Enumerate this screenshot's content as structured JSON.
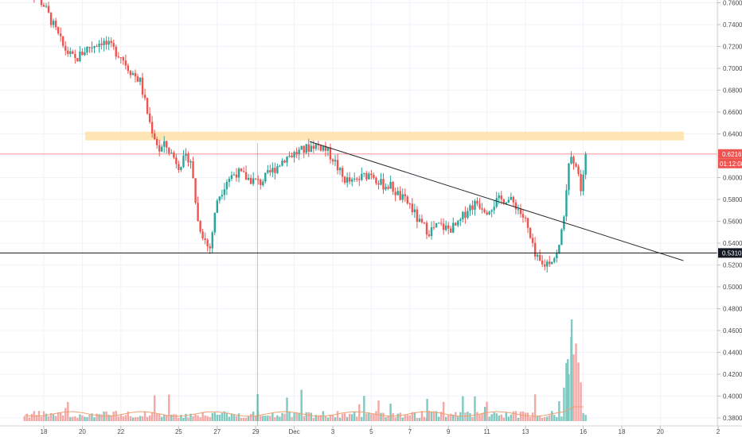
{
  "chart_data": {
    "type": "candlestick",
    "price_axis": {
      "ticks": [
        "0.7600",
        "0.7400",
        "0.7200",
        "0.7000",
        "0.6800",
        "0.6600",
        "0.6400",
        "0.6200",
        "0.6000",
        "0.5800",
        "0.5600",
        "0.5400",
        "0.5200",
        "0.5000",
        "0.4800",
        "0.4600",
        "0.4400",
        "0.4200",
        "0.4000",
        "0.3800"
      ]
    },
    "date_axis": {
      "ticks": [
        {
          "label": "18",
          "day": 18
        },
        {
          "label": "20",
          "day": 20
        },
        {
          "label": "22",
          "day": 22
        },
        {
          "label": "25",
          "day": 25
        },
        {
          "label": "27",
          "day": 27
        },
        {
          "label": "29",
          "day": 29
        },
        {
          "label": "Dec",
          "day": 31
        },
        {
          "label": "3",
          "day": 33
        },
        {
          "label": "5",
          "day": 35
        },
        {
          "label": "7",
          "day": 37
        },
        {
          "label": "9",
          "day": 39
        },
        {
          "label": "11",
          "day": 41
        },
        {
          "label": "13",
          "day": 43
        },
        {
          "label": "16",
          "day": 46
        },
        {
          "label": "18",
          "day": 48
        },
        {
          "label": "20",
          "day": 50
        },
        {
          "label": "2",
          "day": 53
        }
      ]
    },
    "price_path": [
      [
        17.0,
        0.78
      ],
      [
        18.0,
        0.758
      ],
      [
        19.0,
        0.72
      ],
      [
        19.6,
        0.707
      ],
      [
        20.2,
        0.718
      ],
      [
        21.0,
        0.725
      ],
      [
        22.0,
        0.712
      ],
      [
        22.4,
        0.7
      ],
      [
        23.0,
        0.688
      ],
      [
        23.5,
        0.65
      ],
      [
        24.0,
        0.625
      ],
      [
        24.3,
        0.63
      ],
      [
        25.0,
        0.612
      ],
      [
        25.6,
        0.62
      ],
      [
        26.0,
        0.56
      ],
      [
        26.3,
        0.546
      ],
      [
        26.6,
        0.533
      ],
      [
        27.0,
        0.58
      ],
      [
        27.5,
        0.598
      ],
      [
        28.0,
        0.605
      ],
      [
        28.5,
        0.6
      ],
      [
        29.2,
        0.595
      ],
      [
        29.8,
        0.605
      ],
      [
        30.5,
        0.618
      ],
      [
        31.0,
        0.622
      ],
      [
        31.5,
        0.625
      ],
      [
        32.0,
        0.63
      ],
      [
        32.5,
        0.628
      ],
      [
        33.0,
        0.618
      ],
      [
        33.5,
        0.6
      ],
      [
        34.0,
        0.595
      ],
      [
        34.5,
        0.6
      ],
      [
        35.0,
        0.605
      ],
      [
        35.5,
        0.594
      ],
      [
        36.0,
        0.592
      ],
      [
        36.5,
        0.582
      ],
      [
        37.0,
        0.575
      ],
      [
        37.5,
        0.558
      ],
      [
        38.0,
        0.551
      ],
      [
        38.5,
        0.556
      ],
      [
        39.0,
        0.553
      ],
      [
        39.5,
        0.556
      ],
      [
        40.0,
        0.572
      ],
      [
        40.5,
        0.577
      ],
      [
        41.0,
        0.571
      ],
      [
        41.5,
        0.578
      ],
      [
        42.0,
        0.581
      ],
      [
        42.5,
        0.575
      ],
      [
        43.0,
        0.56
      ],
      [
        43.5,
        0.527
      ],
      [
        43.9,
        0.519
      ],
      [
        44.3,
        0.525
      ],
      [
        44.7,
        0.53
      ],
      [
        45.1,
        0.58
      ],
      [
        45.3,
        0.628
      ],
      [
        45.6,
        0.612
      ],
      [
        45.9,
        0.59
      ],
      [
        46.2,
        0.618
      ]
    ],
    "last_price": "0.6216",
    "countdown": "01:12:08",
    "horizontal_line_price": "0.5310",
    "resistance_zone": [
      0.634,
      0.642
    ],
    "trendline": {
      "from": [
        31.8,
        0.633
      ],
      "to": [
        51.2,
        0.524
      ]
    },
    "vertical_marker_day": 29.1,
    "volume_axis_range": [
      0,
      0.36
    ]
  },
  "colors": {
    "up": "#26a69a",
    "down": "#ef5350",
    "volume_up": "#7fc9c0",
    "volume_down": "#f4a8a6",
    "zone": "#ffe0a6",
    "price_line": "#ef5350",
    "support_line": "#1a1a1a",
    "trendline": "#2b2b2b",
    "grid": "#f0f3fa",
    "axis_text": "#4a4a4a"
  }
}
